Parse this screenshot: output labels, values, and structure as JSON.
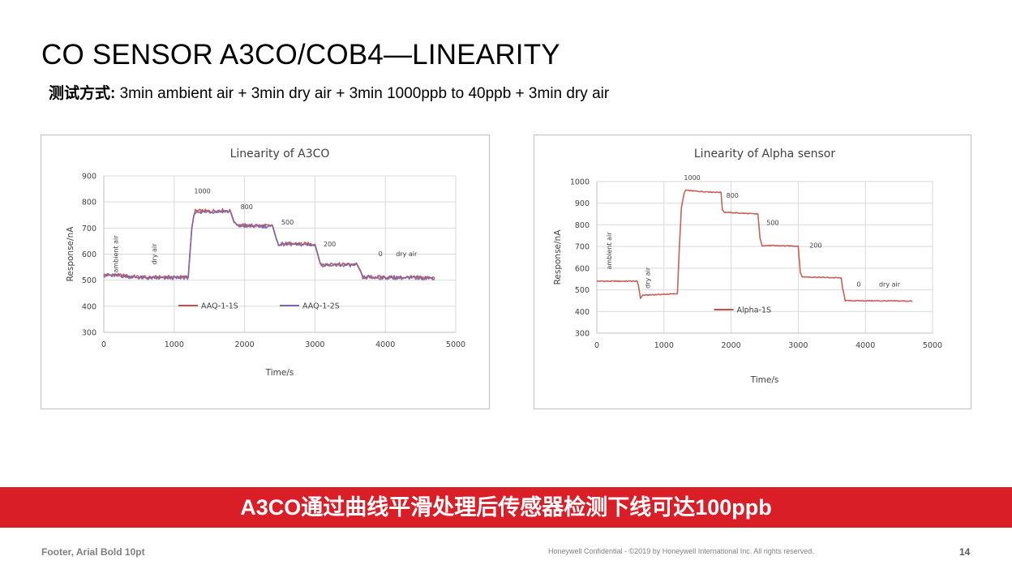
{
  "slide": {
    "title": "CO SENSOR A3CO/COB4—LINEARITY",
    "method_label": "测试方式:",
    "method_text": " 3min ambient air + 3min dry air + 3min 1000ppb to 40ppb + 3min dry air"
  },
  "banner": {
    "text": "A3CO通过曲线平滑处理后传感器检测下线可达100ppb",
    "color": "#da1e28"
  },
  "footer": {
    "left": "Footer, Arial Bold 10pt",
    "center": "Honeywell Confidential - ©2019 by Honeywell International Inc. All rights reserved.",
    "page_number": "14"
  },
  "chart_data": [
    {
      "type": "line",
      "title": "Linearity of A3CO",
      "xlabel": "Time/s",
      "ylabel": "Response/nA",
      "xlim": [
        0,
        5000
      ],
      "ylim": [
        300,
        900
      ],
      "xticks": [
        0,
        1000,
        2000,
        3000,
        4000,
        5000
      ],
      "yticks": [
        300,
        400,
        500,
        600,
        700,
        800,
        900
      ],
      "grid": true,
      "legend": "bottom-center",
      "series": [
        {
          "name": "AAQ-1-1S",
          "color": "#c0504d",
          "x": [
            0,
            150,
            600,
            1200,
            1250,
            1280,
            1300,
            1500,
            1700,
            1800,
            1850,
            1900,
            2400,
            2450,
            2480,
            3000,
            3050,
            3080,
            3600,
            3650,
            3680,
            4700
          ],
          "y": [
            520,
            520,
            510,
            512,
            700,
            750,
            765,
            765,
            768,
            765,
            725,
            710,
            708,
            660,
            640,
            638,
            590,
            560,
            560,
            535,
            512,
            510
          ]
        },
        {
          "name": "AAQ-1-2S",
          "color": "#8064a2",
          "x": [
            0,
            150,
            600,
            1200,
            1250,
            1280,
            1300,
            1500,
            1700,
            1800,
            1850,
            1900,
            2400,
            2450,
            2480,
            3000,
            3050,
            3080,
            3600,
            3650,
            3680,
            4700
          ],
          "y": [
            518,
            518,
            508,
            510,
            698,
            748,
            762,
            762,
            765,
            762,
            722,
            708,
            706,
            658,
            638,
            636,
            588,
            558,
            558,
            533,
            510,
            508
          ]
        }
      ],
      "annotations": [
        {
          "text": "ambient air",
          "x": 200,
          "y": 600,
          "rotated": true
        },
        {
          "text": "dry air",
          "x": 750,
          "y": 600,
          "rotated": true
        },
        {
          "text": "1000",
          "x": 1400,
          "y": 833
        },
        {
          "text": "800",
          "x": 2030,
          "y": 773
        },
        {
          "text": "500",
          "x": 2610,
          "y": 714
        },
        {
          "text": "200",
          "x": 3210,
          "y": 630
        },
        {
          "text": "0",
          "x": 3930,
          "y": 592
        },
        {
          "text": "dry air",
          "x": 4300,
          "y": 592
        }
      ]
    },
    {
      "type": "line",
      "title": "Linearity of Alpha sensor",
      "xlabel": "Time/s",
      "ylabel": "Response/nA",
      "xlim": [
        0,
        5000
      ],
      "ylim": [
        300,
        1000
      ],
      "xticks": [
        0,
        1000,
        2000,
        3000,
        4000,
        5000
      ],
      "yticks": [
        300,
        400,
        500,
        600,
        700,
        800,
        900,
        1000
      ],
      "grid": true,
      "legend": "bottom-center",
      "series": [
        {
          "name": "Alpha-1S",
          "color": "#c0504d",
          "x": [
            0,
            600,
            620,
            650,
            680,
            1200,
            1230,
            1260,
            1300,
            1320,
            1500,
            1850,
            1870,
            1900,
            2400,
            2430,
            2460,
            3000,
            3030,
            3060,
            3640,
            3660,
            3700,
            4700
          ],
          "y": [
            540,
            540,
            520,
            460,
            475,
            482,
            700,
            880,
            945,
            960,
            955,
            950,
            870,
            858,
            850,
            740,
            705,
            702,
            580,
            560,
            555,
            510,
            450,
            448
          ]
        }
      ],
      "annotations": [
        {
          "text": "ambient air",
          "x": 220,
          "y": 680,
          "rotated": true
        },
        {
          "text": "dry air",
          "x": 790,
          "y": 555,
          "rotated": true
        },
        {
          "text": "1000",
          "x": 1420,
          "y": 1007
        },
        {
          "text": "800",
          "x": 2020,
          "y": 925
        },
        {
          "text": "500",
          "x": 2620,
          "y": 800
        },
        {
          "text": "200",
          "x": 3260,
          "y": 695
        },
        {
          "text": "0",
          "x": 3900,
          "y": 516
        },
        {
          "text": "dry air",
          "x": 4360,
          "y": 516
        }
      ]
    }
  ]
}
